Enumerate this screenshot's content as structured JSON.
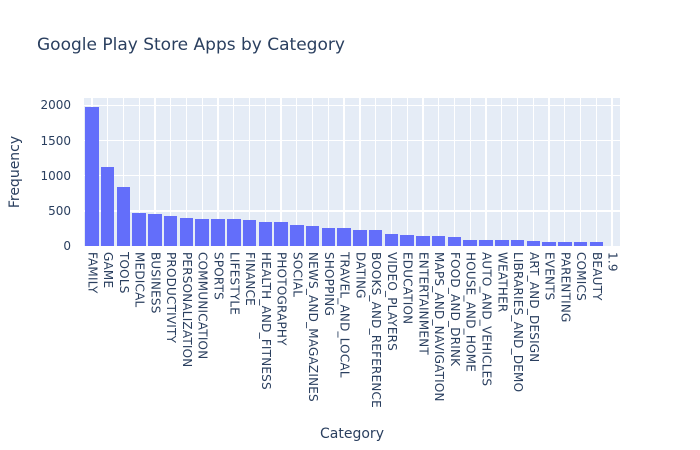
{
  "figure": {
    "title": "Google Play Store Apps by Category",
    "x_axis_title": "Category",
    "y_axis_title": "Frequency"
  },
  "chart_data": {
    "type": "bar",
    "title": "Google Play Store Apps by Category",
    "xlabel": "Category",
    "ylabel": "Frequency",
    "categories": [
      "FAMILY",
      "GAME",
      "TOOLS",
      "MEDICAL",
      "BUSINESS",
      "PRODUCTIVITY",
      "PERSONALIZATION",
      "COMMUNICATION",
      "SPORTS",
      "LIFESTYLE",
      "FINANCE",
      "HEALTH_AND_FITNESS",
      "PHOTOGRAPHY",
      "SOCIAL",
      "NEWS_AND_MAGAZINES",
      "SHOPPING",
      "TRAVEL_AND_LOCAL",
      "DATING",
      "BOOKS_AND_REFERENCE",
      "VIDEO_PLAYERS",
      "EDUCATION",
      "ENTERTAINMENT",
      "MAPS_AND_NAVIGATION",
      "FOOD_AND_DRINK",
      "HOUSE_AND_HOME",
      "AUTO_AND_VEHICLES",
      "WEATHER",
      "LIBRARIES_AND_DEMO",
      "ART_AND_DESIGN",
      "EVENTS",
      "PARENTING",
      "COMICS",
      "BEAUTY",
      "1.9"
    ],
    "values": [
      1972,
      1130,
      840,
      463,
      460,
      424,
      392,
      387,
      384,
      382,
      366,
      341,
      335,
      295,
      283,
      260,
      258,
      234,
      231,
      175,
      156,
      149,
      137,
      127,
      88,
      85,
      82,
      79,
      65,
      64,
      60,
      58,
      53,
      1
    ],
    "yticks": [
      0,
      500,
      1000,
      1500,
      2000
    ],
    "ylim": [
      0,
      2100
    ],
    "grid": true,
    "legend": "none",
    "colors": {
      "bar": "#636efa",
      "plot_background": "#e5ecf6",
      "gridline": "#ffffff",
      "text": "#2a3f5f",
      "page_background": "#ffffff"
    }
  }
}
